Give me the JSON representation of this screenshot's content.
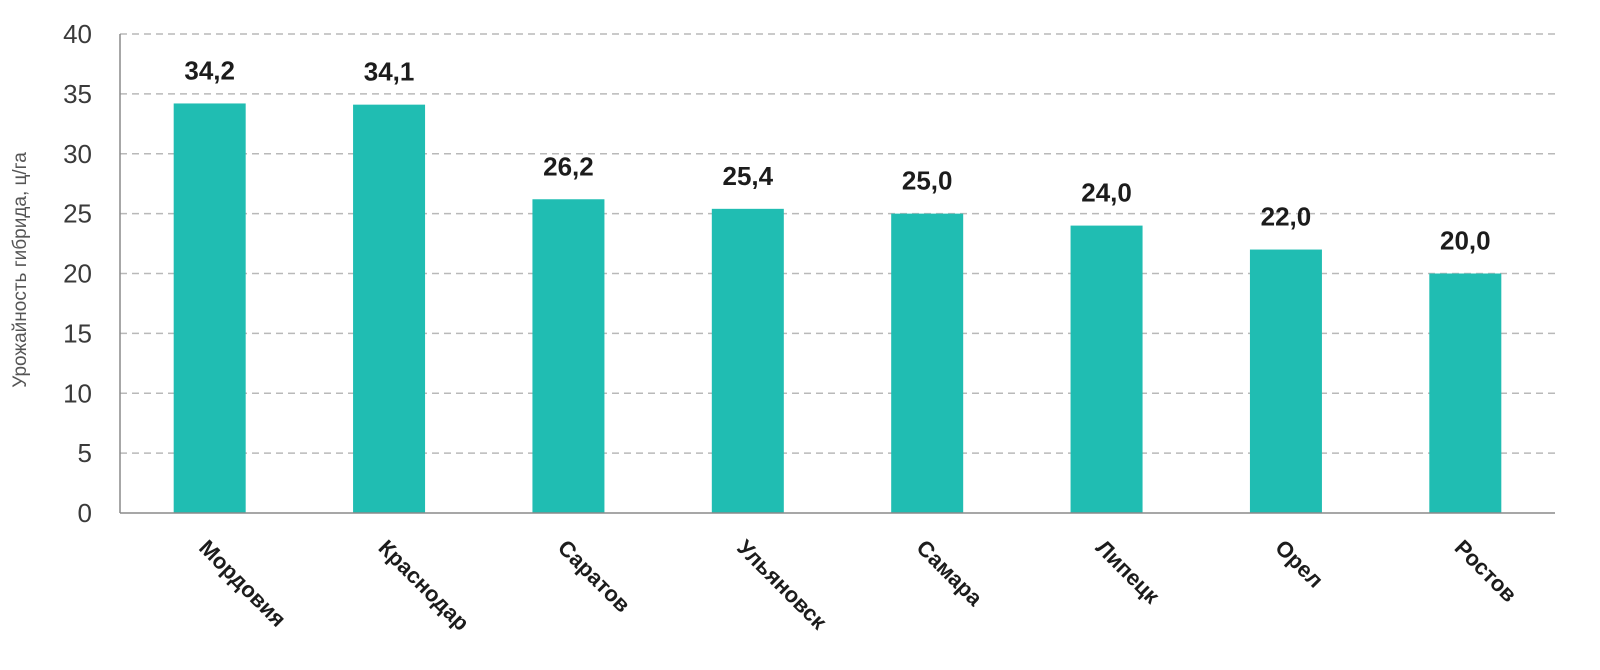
{
  "chart_data": {
    "type": "bar",
    "ylabel": "Урожайность гибрида, ц/га",
    "ylim": [
      0,
      40
    ],
    "yticks": [
      0,
      5,
      10,
      15,
      20,
      25,
      30,
      35,
      40
    ],
    "grid": true,
    "categories": [
      "Мордовия",
      "Краснодар",
      "Саратов",
      "Ульяновск",
      "Самара",
      "Липецк",
      "Орел",
      "Ростов"
    ],
    "values": [
      34.2,
      34.1,
      26.2,
      25.4,
      25.0,
      24.0,
      22.0,
      20.0
    ],
    "data_labels": [
      "34,2",
      "34,1",
      "26,2",
      "25,4",
      "25,0",
      "24,0",
      "22,0",
      "20,0"
    ],
    "bar_color": "#20bdb2"
  }
}
